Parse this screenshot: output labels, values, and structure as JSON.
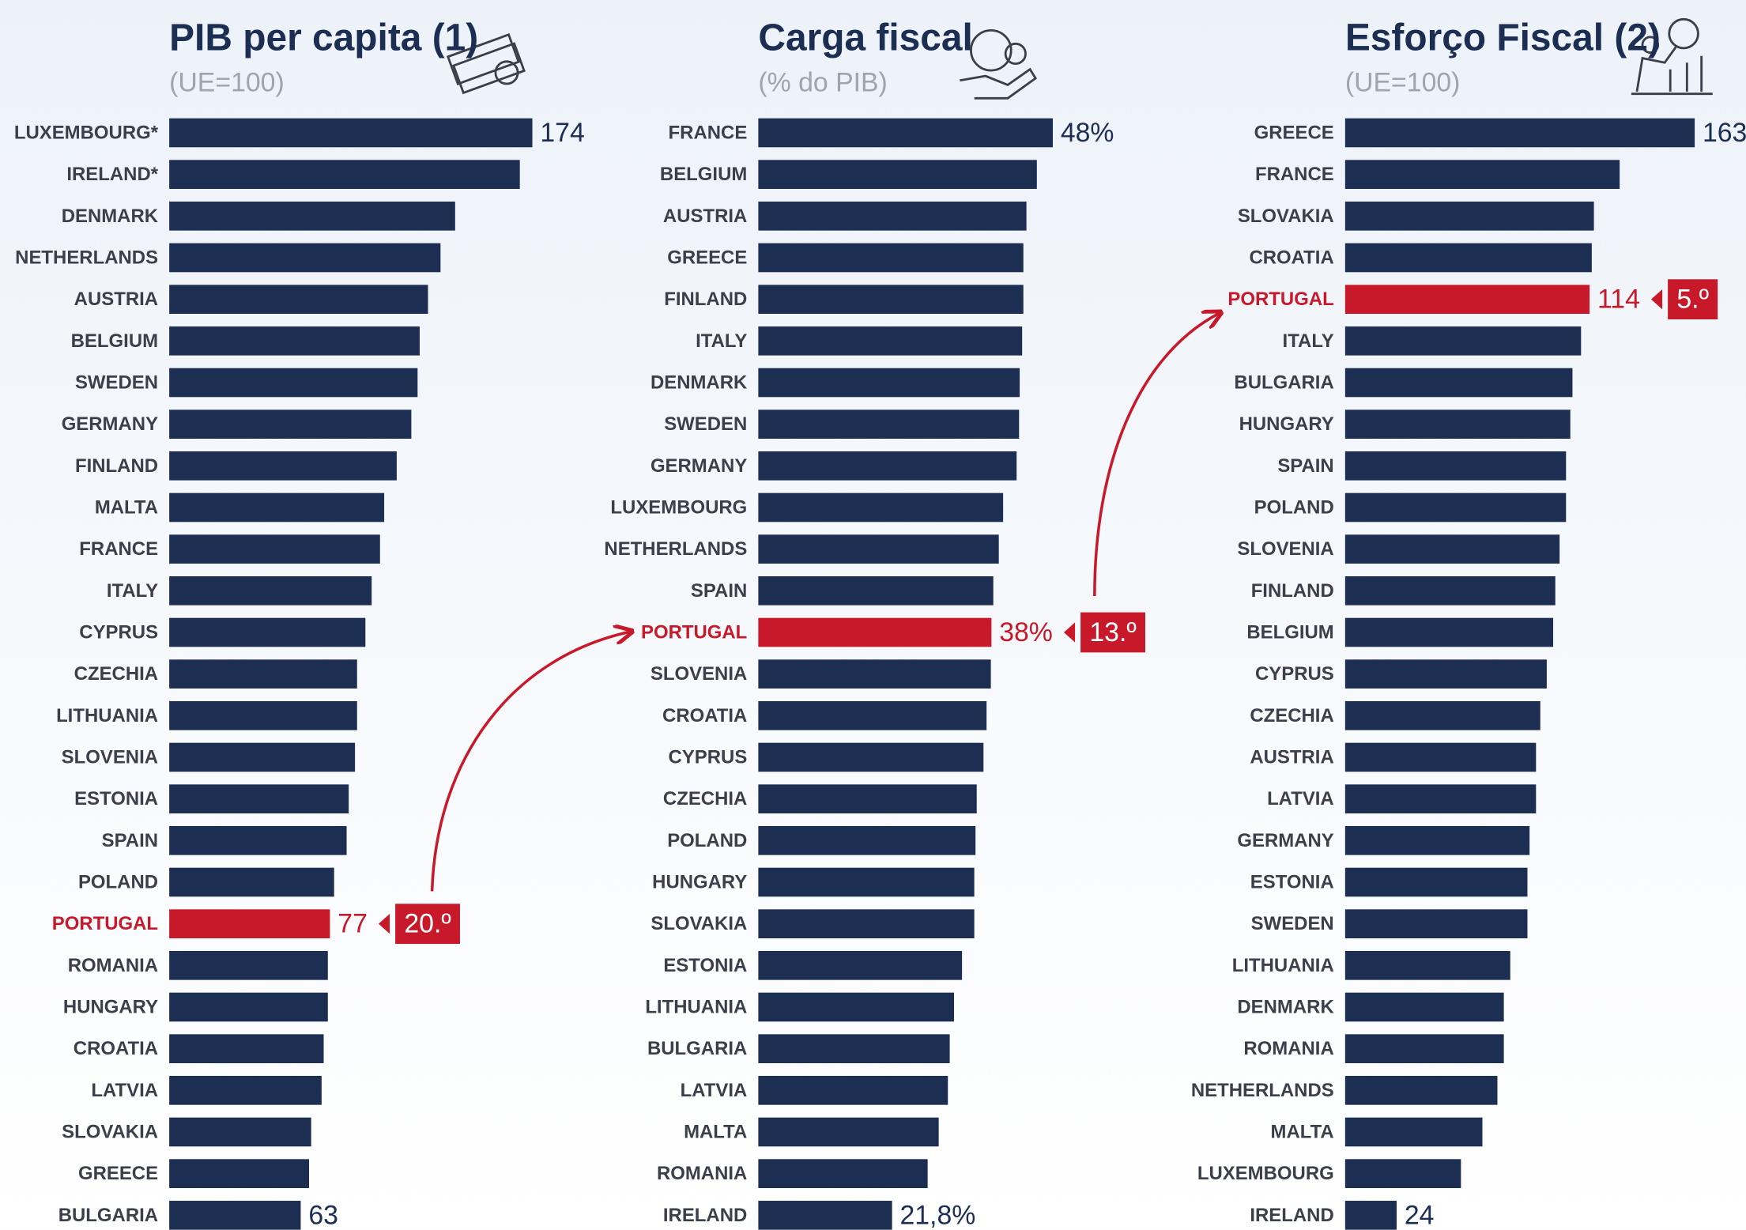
{
  "chart_data": [
    {
      "type": "bar",
      "orientation": "horizontal",
      "title": "PIB per capita (1)",
      "subtitle": "(UE=100)",
      "categories": [
        "LUXEMBOURG*",
        "IRELAND*",
        "DENMARK",
        "NETHERLANDS",
        "AUSTRIA",
        "BELGIUM",
        "SWEDEN",
        "GERMANY",
        "FINLAND",
        "MALTA",
        "FRANCE",
        "ITALY",
        "CYPRUS",
        "CZECHIA",
        "LITHUANIA",
        "SLOVENIA",
        "ESTONIA",
        "SPAIN",
        "POLAND",
        "PORTUGAL",
        "ROMANIA",
        "HUNGARY",
        "CROATIA",
        "LATVIA",
        "SLOVAKIA",
        "GREECE",
        "BULGARIA"
      ],
      "values": [
        174,
        168,
        137,
        130,
        124,
        120,
        119,
        116,
        109,
        103,
        101,
        97,
        94,
        90,
        90,
        89,
        86,
        85,
        79,
        77,
        76,
        76,
        74,
        73,
        68,
        67,
        63
      ],
      "value_labels": [
        "174",
        null,
        null,
        null,
        null,
        null,
        null,
        null,
        null,
        null,
        null,
        null,
        null,
        null,
        null,
        null,
        null,
        null,
        null,
        "77",
        null,
        null,
        null,
        null,
        null,
        null,
        "63"
      ],
      "xlim": [
        0,
        200
      ],
      "color": "#1c2e52",
      "highlight": 19,
      "highlight_color": "#c8192a",
      "rank_label": "20.º"
    },
    {
      "type": "bar",
      "orientation": "horizontal",
      "title": "Carga fiscal",
      "subtitle": "(% do PIB)",
      "categories": [
        "FRANCE",
        "BELGIUM",
        "AUSTRIA",
        "GREECE",
        "FINLAND",
        "ITALY",
        "DENMARK",
        "SWEDEN",
        "GERMANY",
        "LUXEMBOURG",
        "NETHERLANDS",
        "SPAIN",
        "PORTUGAL",
        "SLOVENIA",
        "CROATIA",
        "CYPRUS",
        "CZECHIA",
        "POLAND",
        "HUNGARY",
        "SLOVAKIA",
        "ESTONIA",
        "LITHUANIA",
        "BULGARIA",
        "LATVIA",
        "MALTA",
        "ROMANIA",
        "IRELAND"
      ],
      "values": [
        48,
        45.4,
        43.7,
        43.2,
        43.2,
        43.0,
        42.6,
        42.5,
        42.1,
        39.9,
        39.2,
        38.3,
        38,
        37.9,
        37.2,
        36.7,
        35.6,
        35.4,
        35.2,
        35.2,
        33.2,
        31.9,
        31.2,
        30.9,
        29.4,
        27.6,
        21.8
      ],
      "value_labels": [
        "48%",
        null,
        null,
        null,
        null,
        null,
        null,
        null,
        null,
        null,
        null,
        null,
        "38%",
        null,
        null,
        null,
        null,
        null,
        null,
        null,
        null,
        null,
        null,
        null,
        null,
        null,
        "21,8%"
      ],
      "xlim": [
        0,
        60
      ],
      "color": "#1c2e52",
      "highlight": 12,
      "highlight_color": "#c8192a",
      "rank_label": "13.º"
    },
    {
      "type": "bar",
      "orientation": "horizontal",
      "title": "Esforço Fiscal (2)",
      "subtitle": "(UE=100)",
      "categories": [
        "GREECE",
        "FRANCE",
        "SLOVAKIA",
        "CROATIA",
        "PORTUGAL",
        "ITALY",
        "BULGARIA",
        "HUNGARY",
        "SPAIN",
        "POLAND",
        "SLOVENIA",
        "FINLAND",
        "BELGIUM",
        "CYPRUS",
        "CZECHIA",
        "AUSTRIA",
        "LATVIA",
        "GERMANY",
        "ESTONIA",
        "SWEDEN",
        "LITHUANIA",
        "DENMARK",
        "ROMANIA",
        "NETHERLANDS",
        "MALTA",
        "LUXEMBOURG",
        "IRELAND"
      ],
      "values": [
        163,
        128,
        116,
        115,
        114,
        110,
        106,
        105,
        103,
        103,
        100,
        98,
        97,
        94,
        91,
        89,
        89,
        86,
        85,
        85,
        77,
        74,
        74,
        71,
        64,
        54,
        24
      ],
      "value_labels": [
        "163",
        null,
        null,
        null,
        "114",
        null,
        null,
        null,
        null,
        null,
        null,
        null,
        null,
        null,
        null,
        null,
        null,
        null,
        null,
        null,
        null,
        null,
        null,
        null,
        null,
        null,
        "24"
      ],
      "xlim": [
        0,
        200
      ],
      "color": "#1c2e52",
      "highlight": 4,
      "highlight_color": "#c8192a",
      "rank_label": "5.º"
    }
  ]
}
